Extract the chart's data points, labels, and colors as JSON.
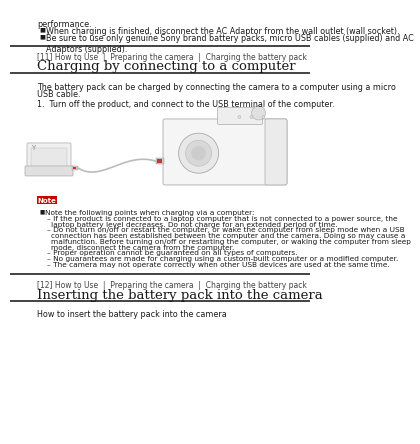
{
  "bg_color": "#ffffff",
  "lm": 0.09,
  "rm": 0.97,
  "top_text0": "performance.",
  "top_bullets": [
    "When charging is finished, disconnect the AC Adaptor from the wall outlet (wall socket).",
    "Be sure to use only genuine Sony brand battery packs, micro USB cables (supplied) and AC Adaptors (supplied)."
  ],
  "section1_breadcrumb": "[11] How to Use  |  Preparing the camera  |  Charging the battery pack",
  "section1_title": "Charging by connecting to a computer",
  "section1_body1": "The battery pack can be charged by connecting the camera to a computer using a micro",
  "section1_body2": "USB cable.",
  "section1_step": "1.  Turn off the product, and connect to the USB terminal of the computer.",
  "note_label": "Note",
  "note_label_bg": "#cc0000",
  "note_bullet_text": "Note the following points when charging via a computer:",
  "note_sub": [
    "– If the product is connected to a laptop computer that is not connected to a power source, the",
    "  laptop battery level decreases. Do not charge for an extended period of time.",
    "– Do not turn on/off or restart the computer, or wake the computer from sleep mode when a USB",
    "  connection has been established between the computer and the camera. Doing so may cause a",
    "  malfunction. Before turning on/off or restarting the computer, or waking the computer from sleep",
    "  mode, disconnect the camera from the computer.",
    "– Proper operation cannot be guaranteed on all types of computers.",
    "– No guarantees are made for charging using a custom-built computer or a modified computer.",
    "– The camera may not operate correctly when other USB devices are used at the same time."
  ],
  "section2_breadcrumb": "[12] How to Use  |  Preparing the camera  |  Charging the battery pack",
  "section2_title": "Inserting the battery pack into the camera",
  "section2_body": "How to insert the battery pack into the camera",
  "divider_color": "#222222",
  "text_color": "#1a1a1a",
  "breadcrumb_color": "#444444",
  "fs_body": 5.8,
  "fs_breadcrumb": 5.5,
  "fs_title": 9.5,
  "fs_note": 5.3,
  "fs_step": 5.8,
  "lh": 0.0155,
  "lh_note": 0.0135
}
